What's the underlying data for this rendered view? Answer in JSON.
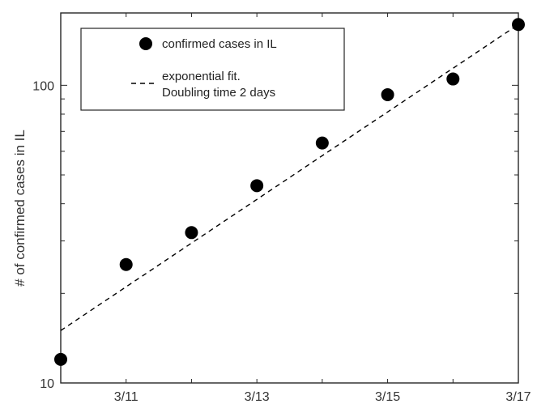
{
  "chart_data": {
    "type": "scatter",
    "xlabel": "",
    "ylabel": "# of confirmed cases in IL",
    "yscale": "log",
    "ylim": [
      10,
      175
    ],
    "xlim": [
      "3/10",
      "3/17"
    ],
    "x_ticks": [
      "3/11",
      "3/13",
      "3/15",
      "3/17"
    ],
    "y_ticks": [
      "10",
      "100"
    ],
    "grid": false,
    "legend_position": "top-left",
    "series": [
      {
        "name": "confirmed cases in IL",
        "style": "markers",
        "color": "#000000",
        "points": [
          {
            "x": "3/10",
            "y": 12
          },
          {
            "x": "3/11",
            "y": 25
          },
          {
            "x": "3/12",
            "y": 32
          },
          {
            "x": "3/13",
            "y": 46
          },
          {
            "x": "3/14",
            "y": 64
          },
          {
            "x": "3/15",
            "y": 93
          },
          {
            "x": "3/16",
            "y": 105
          },
          {
            "x": "3/17",
            "y": 160
          }
        ]
      },
      {
        "name": "exponential fit.",
        "name_line2": "Doubling time 2 days",
        "style": "dashed",
        "color": "#000000",
        "points": [
          {
            "x": "3/10",
            "y": 15
          },
          {
            "x": "3/17",
            "y": 160
          }
        ]
      }
    ]
  }
}
